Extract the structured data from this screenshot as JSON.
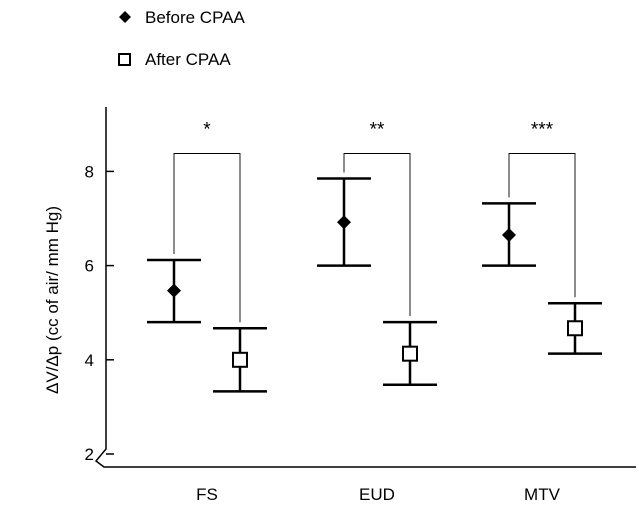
{
  "chart_data": {
    "type": "scatter",
    "title": "",
    "xlabel": "",
    "ylabel": "ΔV/Δp (cc of air/ mm Hg)",
    "ylim": [
      2,
      9.4
    ],
    "yticks": [
      2,
      4,
      6,
      8
    ],
    "categories": [
      "FS",
      "EUD",
      "MTV"
    ],
    "legend_position": "top-left",
    "grid": false,
    "series": [
      {
        "name": "Before CPAA",
        "marker": "filled-diamond",
        "color": "#000000",
        "values": [
          5.47,
          6.92,
          6.65
        ],
        "error_low": [
          4.8,
          6.0,
          6.0
        ],
        "error_high": [
          6.12,
          7.85,
          7.32
        ]
      },
      {
        "name": "After CPAA",
        "marker": "open-square",
        "color": "#000000",
        "values": [
          4.0,
          4.13,
          4.67
        ],
        "error_low": [
          3.33,
          3.47,
          4.13
        ],
        "error_high": [
          4.67,
          4.8,
          5.2
        ]
      }
    ],
    "annotations": [
      {
        "category": "FS",
        "text": "*",
        "y": 8.93
      },
      {
        "category": "EUD",
        "text": "**",
        "y": 8.93
      },
      {
        "category": "MTV",
        "text": "***",
        "y": 8.93
      }
    ]
  }
}
